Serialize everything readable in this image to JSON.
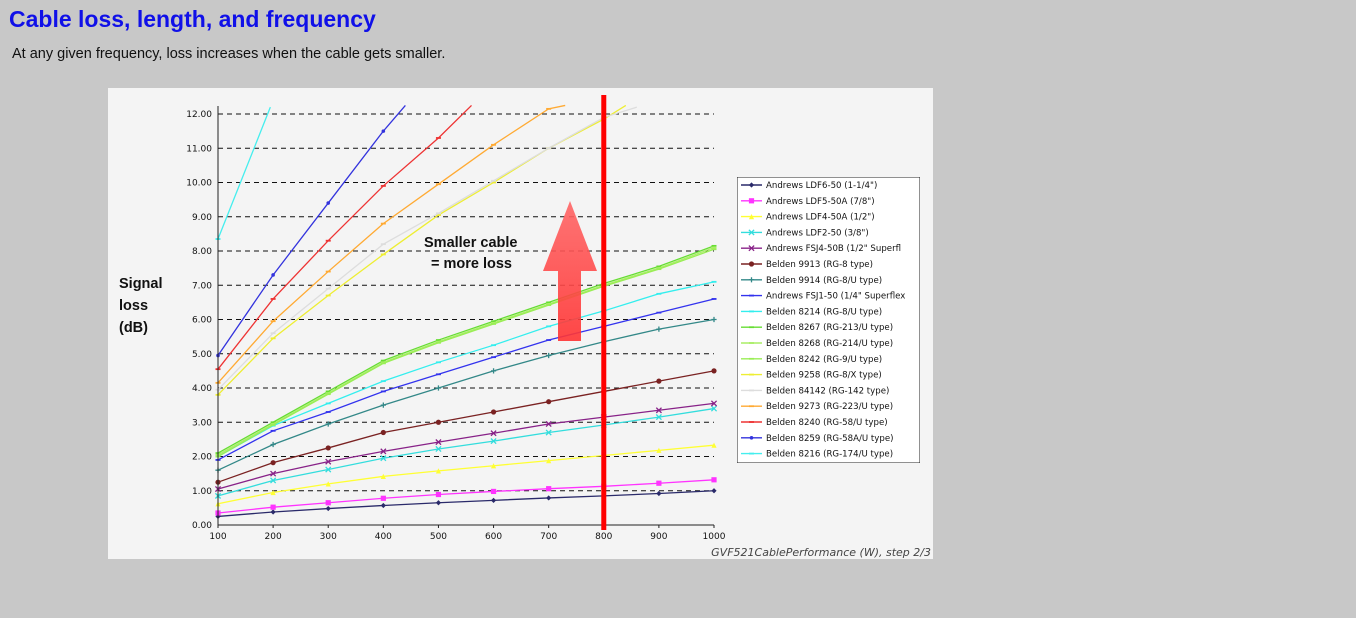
{
  "page": {
    "title": "Cable loss, length, and frequency",
    "subtitle": "At any given frequency, loss increases when the cable gets smaller."
  },
  "chart_data": {
    "type": "line",
    "x": [
      100,
      200,
      300,
      400,
      500,
      600,
      700,
      800,
      900,
      1000
    ],
    "xlim": [
      100,
      1000
    ],
    "ylim": [
      0,
      12
    ],
    "xticks": [
      "100",
      "200",
      "300",
      "400",
      "500",
      "600",
      "700",
      "800",
      "900",
      "1000"
    ],
    "yticks": [
      "0.00",
      "1.00",
      "2.00",
      "3.00",
      "4.00",
      "5.00",
      "6.00",
      "7.00",
      "8.00",
      "9.00",
      "10.00",
      "11.00",
      "12.00"
    ],
    "ylabel": [
      "Signal",
      "loss",
      "(dB)"
    ],
    "grid": "horizontal dashed",
    "legend_position": "right",
    "highlight_x": 800,
    "annotation": [
      "Smaller cable",
      "= more loss"
    ],
    "credit": "GVF521CablePerformance (W), step 2/3",
    "series": [
      {
        "name": "Andrews LDF6-50 (1-1/4\")",
        "color": "#2a2a6a",
        "marker": "diamond",
        "values": [
          0.25,
          0.38,
          0.48,
          0.57,
          0.65,
          0.72,
          0.79,
          0.85,
          0.92,
          1.0
        ]
      },
      {
        "name": "Andrews LDF5-50A (7/8\")",
        "color": "#ff33ff",
        "marker": "square",
        "values": [
          0.35,
          0.52,
          0.65,
          0.78,
          0.89,
          0.98,
          1.06,
          1.13,
          1.22,
          1.32
        ]
      },
      {
        "name": "Andrews LDF4-50A (1/2\")",
        "color": "#ffff33",
        "marker": "triangle",
        "values": [
          0.62,
          0.95,
          1.2,
          1.42,
          1.58,
          1.73,
          1.88,
          2.03,
          2.18,
          2.33
        ]
      },
      {
        "name": "Andrews LDF2-50 (3/8\")",
        "color": "#33dddd",
        "marker": "x",
        "values": [
          0.85,
          1.3,
          1.62,
          1.95,
          2.22,
          2.45,
          2.7,
          2.92,
          3.15,
          3.4
        ]
      },
      {
        "name": "Andrews FSJ4-50B (1/2\" Superfl",
        "color": "#882288",
        "marker": "star",
        "values": [
          1.05,
          1.5,
          1.85,
          2.15,
          2.42,
          2.68,
          2.95,
          3.15,
          3.35,
          3.55
        ]
      },
      {
        "name": "Belden 9913 (RG-8 type)",
        "color": "#7a2222",
        "marker": "circle",
        "values": [
          1.25,
          1.82,
          2.25,
          2.7,
          3.0,
          3.3,
          3.6,
          3.9,
          4.2,
          4.5
        ]
      },
      {
        "name": "Belden 9914 (RG-8/U type)",
        "color": "#338888",
        "marker": "plus",
        "values": [
          1.6,
          2.35,
          2.95,
          3.5,
          4.0,
          4.5,
          4.95,
          5.35,
          5.72,
          6.0
        ]
      },
      {
        "name": "Andrews FSJ1-50 (1/4\" Superflex",
        "color": "#3333ee",
        "marker": "dash",
        "values": [
          1.9,
          2.75,
          3.3,
          3.9,
          4.4,
          4.9,
          5.4,
          5.8,
          6.2,
          6.6
        ]
      },
      {
        "name": "Belden 8214 (RG-8/U type)",
        "color": "#33eeee",
        "marker": "dash",
        "values": [
          2.0,
          2.9,
          3.55,
          4.2,
          4.75,
          5.25,
          5.8,
          6.25,
          6.75,
          7.1
        ]
      },
      {
        "name": "Belden 8267 (RG-213/U type)",
        "color": "#66dd33",
        "marker": "dash",
        "values": [
          2.1,
          3.0,
          3.9,
          4.8,
          5.4,
          5.95,
          6.5,
          7.05,
          7.55,
          8.15
        ]
      },
      {
        "name": "Belden 8268 (RG-214/U type)",
        "color": "#aaee66",
        "marker": "dash",
        "values": [
          2.05,
          2.95,
          3.85,
          4.75,
          5.35,
          5.9,
          6.45,
          7.0,
          7.5,
          8.1
        ]
      },
      {
        "name": "Belden 8242 (RG-9/U type)",
        "color": "#99ee55",
        "marker": "dash",
        "values": [
          2.0,
          2.92,
          3.82,
          4.72,
          5.32,
          5.87,
          6.42,
          6.97,
          7.47,
          8.05
        ]
      },
      {
        "name": "Belden 9258 (RG-8/X type)",
        "color": "#eeee33",
        "marker": "dash",
        "values": [
          3.8,
          5.45,
          6.7,
          7.9,
          9.05,
          10.0,
          11.0,
          11.85,
          null,
          null
        ]
      },
      {
        "name": "Belden 84142 (RG-142 type)",
        "color": "#dddddd",
        "marker": "dash",
        "values": [
          3.95,
          5.6,
          6.9,
          8.2,
          9.1,
          10.05,
          11.0,
          11.9,
          null,
          null
        ]
      },
      {
        "name": "Belden 9273 (RG-223/U type)",
        "color": "#ffaa33",
        "marker": "dash",
        "values": [
          4.15,
          5.95,
          7.4,
          8.8,
          9.95,
          11.1,
          12.15,
          null,
          null,
          null
        ]
      },
      {
        "name": "Belden 8240 (RG-58/U type)",
        "color": "#ee3333",
        "marker": "dash",
        "values": [
          4.55,
          6.6,
          8.3,
          9.9,
          11.3,
          null,
          null,
          null,
          null,
          null
        ]
      },
      {
        "name": "Belden 8259 (RG-58A/U type)",
        "color": "#3333dd",
        "marker": "dot",
        "values": [
          4.95,
          7.3,
          9.4,
          11.5,
          null,
          null,
          null,
          null,
          null,
          null
        ]
      },
      {
        "name": "Belden 8216 (RG-174/U type)",
        "color": "#44eeee",
        "marker": "dash",
        "values": [
          8.35,
          null,
          null,
          null,
          null,
          null,
          null,
          null,
          null,
          null
        ]
      }
    ],
    "series_extensions": [
      {
        "series": "Belden 9258 (RG-8/X type)",
        "x": [
          840
        ],
        "y": [
          12.25
        ]
      },
      {
        "series": "Belden 84142 (RG-142 type)",
        "x": [
          860
        ],
        "y": [
          12.2
        ]
      },
      {
        "series": "Belden 9273 (RG-223/U type)",
        "x": [
          730
        ],
        "y": [
          12.25
        ]
      },
      {
        "series": "Belden 8240 (RG-58/U type)",
        "x": [
          560
        ],
        "y": [
          12.25
        ]
      },
      {
        "series": "Belden 8259 (RG-58A/U type)",
        "x": [
          440
        ],
        "y": [
          12.25
        ]
      },
      {
        "series": "Belden 8216 (RG-174/U type)",
        "x": [
          195
        ],
        "y": [
          12.2
        ]
      }
    ]
  }
}
